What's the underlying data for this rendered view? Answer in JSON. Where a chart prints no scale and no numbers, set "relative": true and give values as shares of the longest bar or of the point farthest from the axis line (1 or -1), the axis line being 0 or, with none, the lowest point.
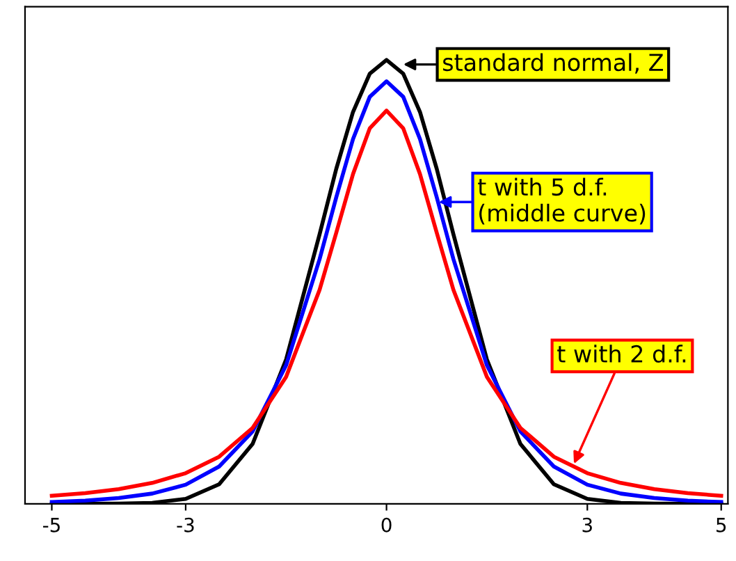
{
  "chart_data": {
    "type": "line",
    "relative": true,
    "x": [
      -5,
      -4.5,
      -4,
      -3.5,
      -3,
      -2.5,
      -2,
      -1.5,
      -1,
      -0.75,
      -0.5,
      -0.25,
      0,
      0.25,
      0.5,
      0.75,
      1,
      1.5,
      2,
      2.5,
      3,
      3.5,
      4,
      4.5,
      5
    ],
    "xlim": [
      -5.4,
      5.1
    ],
    "xticks": [
      -5,
      -3,
      0,
      3,
      5
    ],
    "series": [
      {
        "color": "#000000",
        "values": [
          0,
          0,
          0.0003,
          0.002,
          0.011,
          0.044,
          0.135,
          0.325,
          0.607,
          0.755,
          0.883,
          0.969,
          1,
          0.969,
          0.883,
          0.755,
          0.607,
          0.325,
          0.135,
          0.044,
          0.011,
          0.002,
          0.0003,
          0,
          0
        ]
      },
      {
        "color": "#0000ff",
        "values": [
          0.004,
          0.007,
          0.013,
          0.023,
          0.043,
          0.084,
          0.163,
          0.312,
          0.551,
          0.691,
          0.822,
          0.917,
          0.952,
          0.917,
          0.822,
          0.691,
          0.551,
          0.312,
          0.163,
          0.084,
          0.043,
          0.023,
          0.013,
          0.007,
          0.004
        ]
      },
      {
        "color": "#ff0000",
        "values": [
          0.018,
          0.024,
          0.033,
          0.047,
          0.069,
          0.106,
          0.171,
          0.286,
          0.482,
          0.611,
          0.743,
          0.846,
          0.886,
          0.846,
          0.743,
          0.611,
          0.482,
          0.286,
          0.171,
          0.106,
          0.069,
          0.047,
          0.033,
          0.024,
          0.018
        ]
      }
    ],
    "annotations": [
      {
        "text": "standard normal, Z",
        "x": 0.25,
        "y": 0.99
      },
      {
        "text": "t with 5 d.f.\n(middle curve)",
        "x": 0.78,
        "y": 0.68
      },
      {
        "text": "t with 2 d.f.",
        "x": 2.8,
        "y": 0.09
      }
    ],
    "grid": false,
    "legend": false,
    "marker": "none",
    "line_style": "solid"
  }
}
